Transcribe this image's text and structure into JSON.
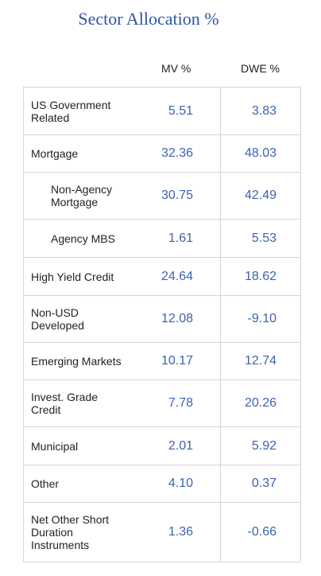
{
  "title": "Sector Allocation %",
  "headers": {
    "mv": "MV %",
    "dwe": "DWE %"
  },
  "rows": [
    {
      "label": "US Government\nRelated",
      "mv": "5.51",
      "dwe": "3.83"
    },
    {
      "label": "Mortgage",
      "mv": "32.36",
      "dwe": "48.03"
    },
    {
      "label": "Non-Agency\nMortgage",
      "mv": "30.75",
      "dwe": "42.49"
    },
    {
      "label": "Agency MBS",
      "mv": "1.61",
      "dwe": "5.53"
    },
    {
      "label": "High Yield Credit",
      "mv": "24.64",
      "dwe": "18.62"
    },
    {
      "label": "Non-USD\nDeveloped",
      "mv": "12.08",
      "dwe": "-9.10"
    },
    {
      "label": "Emerging Markets",
      "mv": "10.17",
      "dwe": "12.74"
    },
    {
      "label": "Invest. Grade\nCredit",
      "mv": "7.78",
      "dwe": "20.26"
    },
    {
      "label": "Municipal",
      "mv": "2.01",
      "dwe": "5.92"
    },
    {
      "label": "Other",
      "mv": "4.10",
      "dwe": "0.37"
    },
    {
      "label": "Net Other Short\nDuration\nInstruments",
      "mv": "1.36",
      "dwe": "-0.66"
    }
  ],
  "colors": {
    "title": "#2e56a6",
    "values": "#3d63ad",
    "border": "#d6d6d6"
  }
}
